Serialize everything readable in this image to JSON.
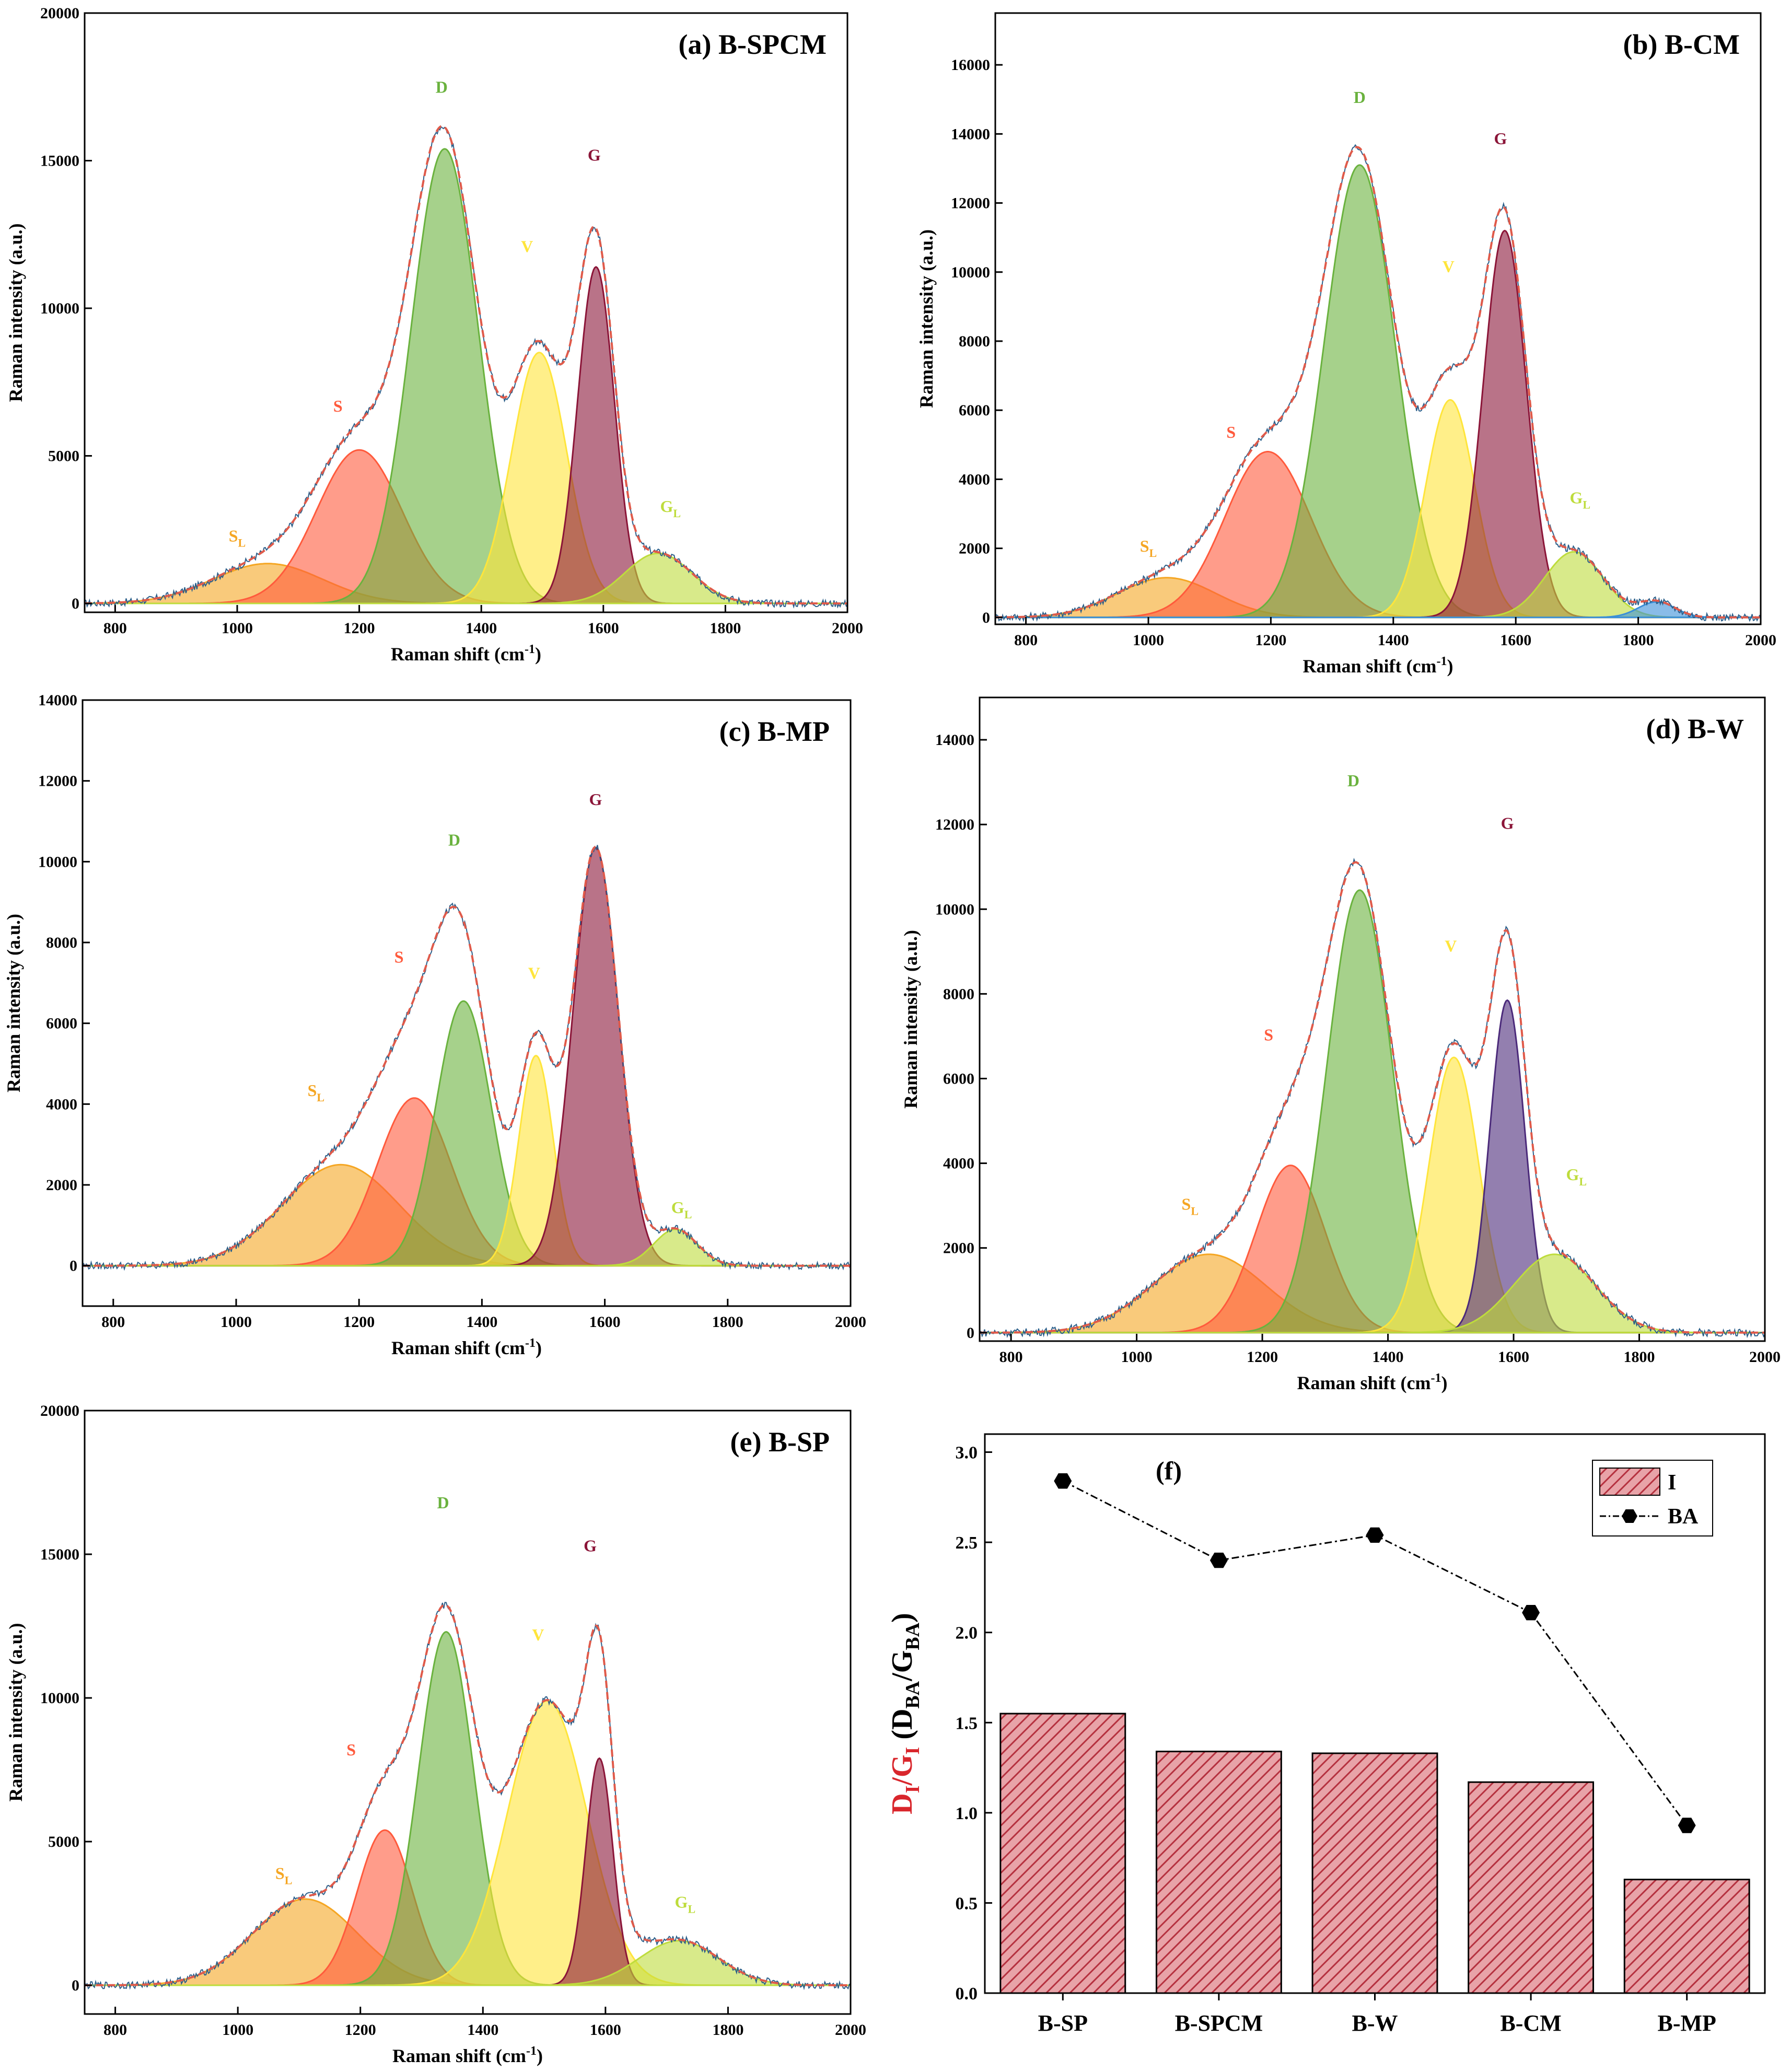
{
  "figure": {
    "description_title": "Raman spectra deconvolution"
  },
  "colors": {
    "SL": "#f5a623",
    "S": "#ff5a3c",
    "D": "#6ab23e",
    "V": "#ffe53b",
    "G": "#8b1538",
    "GL": "#bedc3c",
    "extra": "#3a8fd8",
    "G_purple": "#4b2a7a",
    "raw": "#2c5f8a",
    "fit": "#e05a4a",
    "bar_fill": "#e8a3a8",
    "bar_stroke": "#b5313f",
    "ba": "#000000",
    "ylabel_red": "#d9262c"
  },
  "chart_data": [
    {
      "type": "area",
      "id": "a",
      "title": "(a) B-SPCM",
      "xlabel": "Raman shift (cm",
      "xlabel_sup": "-1",
      "xlabel_end": ")",
      "ylabel": "Raman intensity (a.u.)",
      "xlim": [
        750,
        2000
      ],
      "ylim": [
        -300,
        20000
      ],
      "xticks": [
        "800",
        "1000",
        "1200",
        "1400",
        "1600",
        "1800",
        "2000"
      ],
      "yticks": [
        "0",
        "5000",
        "10000",
        "15000",
        "20000"
      ],
      "peaks": [
        {
          "name": "SL",
          "center": 1050,
          "amp": 1350,
          "width": 90
        },
        {
          "name": "S",
          "center": 1200,
          "amp": 5200,
          "width": 70
        },
        {
          "name": "D",
          "center": 1340,
          "amp": 15400,
          "width": 55
        },
        {
          "name": "V",
          "center": 1495,
          "amp": 8500,
          "width": 45
        },
        {
          "name": "G",
          "center": 1588,
          "amp": 11400,
          "width": 30
        },
        {
          "name": "GL",
          "center": 1690,
          "amp": 1700,
          "width": 55
        }
      ],
      "labels": [
        {
          "text": "S",
          "sub": "L",
          "x": 1000,
          "y": 2100,
          "color": "SL"
        },
        {
          "text": "S",
          "sub": "",
          "x": 1165,
          "y": 6500,
          "color": "S"
        },
        {
          "text": "D",
          "sub": "",
          "x": 1335,
          "y": 17300,
          "color": "D"
        },
        {
          "text": "V",
          "sub": "",
          "x": 1475,
          "y": 11900,
          "color": "V"
        },
        {
          "text": "G",
          "sub": "",
          "x": 1585,
          "y": 15000,
          "color": "G"
        },
        {
          "text": "G",
          "sub": "L",
          "x": 1710,
          "y": 3100,
          "color": "GL"
        }
      ]
    },
    {
      "type": "area",
      "id": "b",
      "title": "(b) B-CM",
      "xlabel": "Raman shift (cm",
      "xlabel_sup": "-1",
      "xlabel_end": ")",
      "ylabel": "Raman intensity (a.u.)",
      "xlim": [
        750,
        2000
      ],
      "ylim": [
        -200,
        17500
      ],
      "xticks": [
        "800",
        "1000",
        "1200",
        "1400",
        "1600",
        "1800",
        "2000"
      ],
      "yticks": [
        "0",
        "2000",
        "4000",
        "6000",
        "8000",
        "10000",
        "12000",
        "14000",
        "16000"
      ],
      "peaks": [
        {
          "name": "SL",
          "center": 1030,
          "amp": 1150,
          "width": 80
        },
        {
          "name": "S",
          "center": 1195,
          "amp": 4800,
          "width": 70
        },
        {
          "name": "D",
          "center": 1345,
          "amp": 13100,
          "width": 58
        },
        {
          "name": "V",
          "center": 1493,
          "amp": 6300,
          "width": 40
        },
        {
          "name": "G",
          "center": 1582,
          "amp": 11200,
          "width": 35
        },
        {
          "name": "GL",
          "center": 1695,
          "amp": 1900,
          "width": 48
        },
        {
          "name": "extra",
          "center": 1830,
          "amp": 450,
          "width": 30
        }
      ],
      "labels": [
        {
          "text": "S",
          "sub": "L",
          "x": 1000,
          "y": 1900,
          "color": "SL"
        },
        {
          "text": "S",
          "sub": "",
          "x": 1135,
          "y": 5200,
          "color": "S"
        },
        {
          "text": "D",
          "sub": "",
          "x": 1345,
          "y": 14900,
          "color": "D"
        },
        {
          "text": "V",
          "sub": "",
          "x": 1490,
          "y": 10000,
          "color": "V"
        },
        {
          "text": "G",
          "sub": "",
          "x": 1575,
          "y": 13700,
          "color": "G"
        },
        {
          "text": "G",
          "sub": "L",
          "x": 1705,
          "y": 3300,
          "color": "GL"
        }
      ]
    },
    {
      "type": "area",
      "id": "c",
      "title": "(c) B-MP",
      "xlabel": "Raman shift (cm",
      "xlabel_sup": "-1",
      "xlabel_end": ")",
      "ylabel": "Raman intensity (a.u.)",
      "xlim": [
        750,
        2000
      ],
      "ylim": [
        -1000,
        14000
      ],
      "xticks": [
        "800",
        "1000",
        "1200",
        "1400",
        "1600",
        "1800",
        "2000"
      ],
      "yticks": [
        "0",
        "2000",
        "4000",
        "6000",
        "8000",
        "10000",
        "12000",
        "14000"
      ],
      "peaks": [
        {
          "name": "SL",
          "center": 1170,
          "amp": 2500,
          "width": 95
        },
        {
          "name": "S",
          "center": 1290,
          "amp": 4150,
          "width": 60
        },
        {
          "name": "D",
          "center": 1370,
          "amp": 6550,
          "width": 45
        },
        {
          "name": "V",
          "center": 1488,
          "amp": 5200,
          "width": 28
        },
        {
          "name": "G",
          "center": 1585,
          "amp": 10350,
          "width": 37
        },
        {
          "name": "GL",
          "center": 1715,
          "amp": 900,
          "width": 35
        }
      ],
      "labels": [
        {
          "text": "S",
          "sub": "L",
          "x": 1130,
          "y": 4200,
          "color": "SL"
        },
        {
          "text": "S",
          "sub": "",
          "x": 1265,
          "y": 7500,
          "color": "S"
        },
        {
          "text": "D",
          "sub": "",
          "x": 1355,
          "y": 10400,
          "color": "D"
        },
        {
          "text": "V",
          "sub": "",
          "x": 1485,
          "y": 7100,
          "color": "V"
        },
        {
          "text": "G",
          "sub": "",
          "x": 1585,
          "y": 11400,
          "color": "G"
        },
        {
          "text": "G",
          "sub": "L",
          "x": 1725,
          "y": 1300,
          "color": "GL"
        }
      ]
    },
    {
      "type": "area",
      "id": "d",
      "title": "(d) B-W",
      "xlabel": "Raman shift (cm",
      "xlabel_sup": "-1",
      "xlabel_end": ")",
      "ylabel": "Raman intensity (a.u.)",
      "xlim": [
        750,
        2000
      ],
      "ylim": [
        -200,
        15000
      ],
      "xticks": [
        "800",
        "1000",
        "1200",
        "1400",
        "1600",
        "1800",
        "2000"
      ],
      "yticks": [
        "0",
        "2000",
        "4000",
        "6000",
        "8000",
        "10000",
        "12000",
        "14000"
      ],
      "peaks": [
        {
          "name": "SL",
          "center": 1115,
          "amp": 1850,
          "width": 90
        },
        {
          "name": "S",
          "center": 1245,
          "amp": 3950,
          "width": 55
        },
        {
          "name": "D",
          "center": 1355,
          "amp": 10450,
          "width": 52
        },
        {
          "name": "V",
          "center": 1505,
          "amp": 6500,
          "width": 40
        },
        {
          "name": "G_purple",
          "center": 1590,
          "amp": 7850,
          "width": 28
        },
        {
          "name": "GL",
          "center": 1665,
          "amp": 1850,
          "width": 65
        }
      ],
      "labels": [
        {
          "text": "S",
          "sub": "L",
          "x": 1085,
          "y": 2900,
          "color": "SL"
        },
        {
          "text": "S",
          "sub": "",
          "x": 1210,
          "y": 6900,
          "color": "S"
        },
        {
          "text": "D",
          "sub": "",
          "x": 1345,
          "y": 12900,
          "color": "D"
        },
        {
          "text": "V",
          "sub": "",
          "x": 1500,
          "y": 9000,
          "color": "V"
        },
        {
          "text": "G",
          "sub": "",
          "x": 1590,
          "y": 11900,
          "color": "G"
        },
        {
          "text": "G",
          "sub": "L",
          "x": 1700,
          "y": 3600,
          "color": "GL"
        }
      ]
    },
    {
      "type": "area",
      "id": "e",
      "title": "(e) B-SP",
      "xlabel": "Raman shift (cm",
      "xlabel_sup": "-1",
      "xlabel_end": ")",
      "ylabel": "Raman intensity (a.u.)",
      "xlim": [
        750,
        2000
      ],
      "ylim": [
        -1000,
        20000
      ],
      "xticks": [
        "800",
        "1000",
        "1200",
        "1400",
        "1600",
        "1800",
        "2000"
      ],
      "yticks": [
        "0",
        "5000",
        "10000",
        "15000",
        "20000"
      ],
      "peaks": [
        {
          "name": "SL",
          "center": 1110,
          "amp": 3000,
          "width": 85
        },
        {
          "name": "S",
          "center": 1240,
          "amp": 5400,
          "width": 45
        },
        {
          "name": "D",
          "center": 1340,
          "amp": 12300,
          "width": 45
        },
        {
          "name": "V",
          "center": 1505,
          "amp": 9900,
          "width": 65
        },
        {
          "name": "G",
          "center": 1590,
          "amp": 7900,
          "width": 22
        },
        {
          "name": "GL",
          "center": 1720,
          "amp": 1550,
          "width": 65
        }
      ],
      "labels": [
        {
          "text": "S",
          "sub": "L",
          "x": 1075,
          "y": 3700,
          "color": "SL"
        },
        {
          "text": "S",
          "sub": "",
          "x": 1185,
          "y": 8000,
          "color": "S"
        },
        {
          "text": "D",
          "sub": "",
          "x": 1335,
          "y": 16600,
          "color": "D"
        },
        {
          "text": "V",
          "sub": "",
          "x": 1490,
          "y": 12000,
          "color": "V"
        },
        {
          "text": "G",
          "sub": "",
          "x": 1575,
          "y": 15100,
          "color": "G"
        },
        {
          "text": "G",
          "sub": "L",
          "x": 1730,
          "y": 2700,
          "color": "GL"
        }
      ]
    },
    {
      "type": "bar",
      "id": "f",
      "title": "(f)",
      "categories": [
        "B-SP",
        "B-SPCM",
        "B-W",
        "B-CM",
        "B-MP"
      ],
      "series": [
        {
          "name": "I",
          "kind": "bar",
          "values": [
            1.55,
            1.34,
            1.33,
            1.17,
            0.63
          ]
        },
        {
          "name": "BA",
          "kind": "line-marker",
          "values": [
            2.84,
            2.4,
            2.54,
            2.11,
            0.93
          ]
        }
      ],
      "ylim": [
        0,
        3.1
      ],
      "yticks": [
        "0.0",
        "0.5",
        "1.0",
        "1.5",
        "2.0",
        "2.5",
        "3.0"
      ],
      "ylabel": {
        "p1": "D",
        "s1": "I",
        "p2": "/G",
        "s2": "I",
        "p3": " (D",
        "s3": "BA",
        "p4": "/G",
        "s4": "BA",
        "p5": ")"
      },
      "legend": {
        "position": "top-right",
        "entries": [
          "I",
          "BA"
        ]
      }
    }
  ]
}
